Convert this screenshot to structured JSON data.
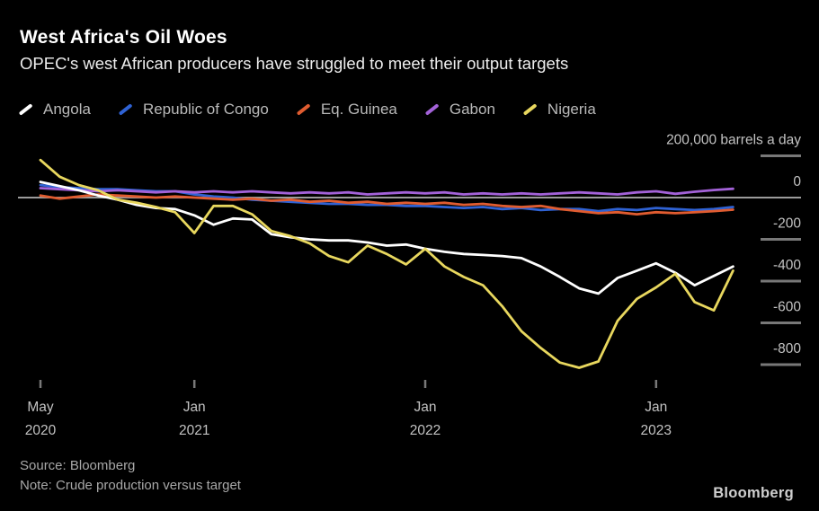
{
  "header": {
    "title": "West Africa's Oil Woes",
    "subtitle": "OPEC's west African producers have struggled to meet their output targets"
  },
  "footer": {
    "source": "Source: Bloomberg",
    "note": "Note: Crude production versus target",
    "logo": "Bloomberg"
  },
  "colors": {
    "background": "#000000",
    "zero_line": "#9b9b9b",
    "tick": "#787878",
    "axis_text": "#c2c2c2"
  },
  "chart_data": {
    "type": "line",
    "title": "West Africa's Oil Woes",
    "subtitle": "OPEC's west African producers have struggled to meet their output targets",
    "unit": "200,000 barrels a day",
    "frequency": "monthly",
    "legend_position": "top",
    "grid": "zero-line-only",
    "months": [
      "2020-05",
      "2020-06",
      "2020-07",
      "2020-08",
      "2020-09",
      "2020-10",
      "2020-11",
      "2020-12",
      "2021-01",
      "2021-02",
      "2021-03",
      "2021-04",
      "2021-05",
      "2021-06",
      "2021-07",
      "2021-08",
      "2021-09",
      "2021-10",
      "2021-11",
      "2021-12",
      "2022-01",
      "2022-02",
      "2022-03",
      "2022-04",
      "2022-05",
      "2022-06",
      "2022-07",
      "2022-08",
      "2022-09",
      "2022-10",
      "2022-11",
      "2022-12",
      "2023-01",
      "2023-02",
      "2023-03",
      "2023-04",
      "2023-05"
    ],
    "series": [
      {
        "name": "Republic of Congo",
        "color": "#2f62d4",
        "values": [
          60,
          50,
          45,
          40,
          40,
          35,
          30,
          30,
          15,
          5,
          0,
          -10,
          -15,
          -20,
          -25,
          -30,
          -30,
          -35,
          -35,
          -40,
          -40,
          -45,
          -50,
          -45,
          -55,
          -50,
          -60,
          -55,
          -55,
          -65,
          -55,
          -60,
          -50,
          -55,
          -60,
          -55,
          -45
        ]
      },
      {
        "name": "Eq. Guinea",
        "color": "#e05c30",
        "values": [
          10,
          -5,
          5,
          15,
          10,
          5,
          0,
          5,
          0,
          -5,
          -10,
          -5,
          -15,
          -10,
          -20,
          -15,
          -25,
          -20,
          -30,
          -25,
          -30,
          -25,
          -35,
          -30,
          -40,
          -45,
          -40,
          -55,
          -65,
          -75,
          -70,
          -80,
          -70,
          -75,
          -70,
          -65,
          -58
        ]
      },
      {
        "name": "Gabon",
        "color": "#a362d8",
        "values": [
          45,
          40,
          35,
          30,
          35,
          30,
          25,
          30,
          25,
          30,
          25,
          30,
          25,
          20,
          25,
          20,
          25,
          15,
          20,
          25,
          20,
          25,
          15,
          20,
          15,
          20,
          15,
          20,
          25,
          20,
          15,
          25,
          30,
          18,
          28,
          36,
          42
        ]
      },
      {
        "name": "Angola",
        "color": "#ffffff",
        "values": [
          75,
          55,
          35,
          10,
          -10,
          -35,
          -50,
          -55,
          -85,
          -130,
          -100,
          -105,
          -175,
          -190,
          -200,
          -205,
          -205,
          -215,
          -230,
          -225,
          -245,
          -260,
          -270,
          -275,
          -280,
          -290,
          -330,
          -380,
          -435,
          -460,
          -385,
          -350,
          -315,
          -360,
          -420,
          -375,
          -330
        ]
      },
      {
        "name": "Nigeria",
        "color": "#e8d75e",
        "values": [
          180,
          100,
          60,
          35,
          -10,
          -25,
          -45,
          -70,
          -170,
          -40,
          -40,
          -80,
          -160,
          -185,
          -220,
          -280,
          -310,
          -230,
          -270,
          -320,
          -245,
          -330,
          -380,
          -420,
          -520,
          -640,
          -720,
          -790,
          -815,
          -785,
          -590,
          -485,
          -430,
          -365,
          -500,
          -540,
          -350
        ]
      }
    ],
    "legend_order": [
      "Angola",
      "Republic of Congo",
      "Eq. Guinea",
      "Gabon",
      "Nigeria"
    ],
    "y_axis": {
      "range": [
        -900,
        250
      ],
      "ticks": [
        {
          "value": 200,
          "label": "200,000 barrels a day"
        },
        {
          "value": 0,
          "label": "0"
        },
        {
          "value": -200,
          "label": "-200"
        },
        {
          "value": -400,
          "label": "-400"
        },
        {
          "value": -600,
          "label": "-600"
        },
        {
          "value": -800,
          "label": "-800"
        }
      ]
    },
    "x_axis": {
      "ticks": [
        {
          "month_index": 0,
          "line1": "May",
          "line2": "2020"
        },
        {
          "month_index": 8,
          "line1": "Jan",
          "line2": "2021"
        },
        {
          "month_index": 20,
          "line1": "Jan",
          "line2": "2022"
        },
        {
          "month_index": 32,
          "line1": "Jan",
          "line2": "2023"
        }
      ]
    }
  }
}
